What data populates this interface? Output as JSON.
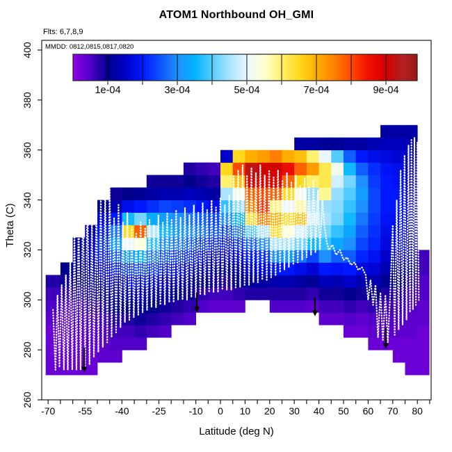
{
  "header": {
    "title": "ATOM1 Northbound OH_GMI",
    "flts": "Flts: 6,7,8,9",
    "mmdd": "MMDD: 0812,0815,0817,0820"
  },
  "axes": {
    "x": {
      "label": "Latitude (deg N)",
      "range": [
        -72.6,
        85.6
      ],
      "tick_step": 5,
      "tick_min": -70,
      "tick_max": 85,
      "labeled_ticks": [
        -70,
        -55,
        -40,
        -25,
        -10,
        0,
        10,
        20,
        30,
        40,
        50,
        60,
        70,
        80
      ]
    },
    "y": {
      "label": "Theta (C)",
      "range": [
        260,
        403
      ],
      "ticks": [
        260,
        280,
        300,
        320,
        340,
        360,
        380,
        400
      ]
    }
  },
  "colorbar": {
    "value_min": 0,
    "value_max_units": 9.9,
    "unit": "1e-04",
    "divider_units": [
      1,
      2,
      3,
      4,
      5,
      6,
      7,
      8,
      9
    ],
    "tick_units": [
      1,
      2,
      3,
      4,
      5,
      6,
      7,
      8,
      9
    ],
    "labeled_units": [
      1,
      3,
      5,
      7,
      9
    ],
    "labels": [
      "1e-04",
      "3e-04",
      "5e-04",
      "7e-04",
      "9e-04"
    ],
    "stops": [
      [
        0,
        "#9100E8"
      ],
      [
        0.5,
        "#5000C8"
      ],
      [
        1,
        "#00008B"
      ],
      [
        1.5,
        "#0000C8"
      ],
      [
        2,
        "#0018FF"
      ],
      [
        2.5,
        "#0D52FF"
      ],
      [
        3,
        "#1E90FF"
      ],
      [
        3.5,
        "#00B4FF"
      ],
      [
        4,
        "#55CCFF"
      ],
      [
        4.5,
        "#A8E4FF"
      ],
      [
        5,
        "#EAF7FF"
      ],
      [
        5.5,
        "#FFFFD0"
      ],
      [
        6,
        "#FFF06E"
      ],
      [
        6.5,
        "#FFD91E"
      ],
      [
        7,
        "#FFAE00"
      ],
      [
        7.5,
        "#FF8000"
      ],
      [
        8,
        "#FF4A00"
      ],
      [
        8.5,
        "#F01000"
      ],
      [
        9,
        "#D40000"
      ],
      [
        9.5,
        "#B22222"
      ],
      [
        9.9,
        "#9B1515"
      ]
    ]
  },
  "chart_data": {
    "type": "heatmap",
    "value_unit": "1e-04 (colorbar scale, OH mole fraction)",
    "theta_start": 270,
    "theta_step": 5,
    "lat_edges": [
      -71,
      -65,
      -60,
      -55,
      -50,
      -45,
      -40,
      -35,
      -30,
      -25,
      -20,
      -15,
      -10,
      -5,
      0,
      5,
      10,
      15,
      20,
      25,
      30,
      35,
      40,
      45,
      50,
      55,
      60,
      65,
      70,
      75,
      80,
      84.8
    ],
    "grid": [
      [
        0.3,
        0.3,
        0.3,
        0.3,
        0.4,
        0.5,
        0.6,
        0.8,
        null,
        null,
        null,
        null,
        null,
        null,
        null,
        null,
        null,
        null,
        null,
        null
      ],
      [
        0.3,
        0.3,
        0.3,
        0.4,
        0.4,
        0.5,
        0.7,
        0.9,
        1.0,
        null,
        null,
        null,
        null,
        null,
        null,
        null,
        null,
        null,
        null,
        null
      ],
      [
        0.3,
        0.3,
        0.3,
        0.4,
        0.5,
        0.6,
        0.8,
        1.0,
        1.1,
        1.2,
        1.1,
        null,
        null,
        null,
        null,
        null,
        null,
        null,
        null,
        null
      ],
      [
        0.3,
        0.3,
        0.4,
        0.4,
        0.5,
        0.7,
        0.9,
        1.1,
        1.3,
        1.5,
        1.5,
        1.3,
        null,
        null,
        null,
        null,
        null,
        null,
        null,
        null
      ],
      [
        null,
        0.4,
        0.4,
        0.5,
        0.6,
        0.8,
        1.0,
        1.3,
        1.6,
        2.0,
        2.2,
        2.0,
        1.6,
        1.0,
        null,
        null,
        null,
        null,
        null,
        null
      ],
      [
        null,
        0.4,
        0.5,
        0.6,
        0.8,
        1.0,
        1.2,
        1.5,
        2.0,
        2.6,
        3.2,
        2.8,
        2.0,
        1.3,
        0.9,
        null,
        null,
        null,
        null,
        null
      ],
      [
        null,
        null,
        0.5,
        0.6,
        0.8,
        1.0,
        1.3,
        1.7,
        2.3,
        3.2,
        5.0,
        6.5,
        3.6,
        1.8,
        1.0,
        null,
        null,
        null,
        null,
        null
      ],
      [
        null,
        null,
        0.5,
        0.7,
        0.9,
        1.1,
        1.4,
        1.8,
        2.4,
        3.4,
        5.5,
        7.8,
        4.2,
        2.0,
        1.1,
        null,
        null,
        null,
        null,
        null
      ],
      [
        null,
        null,
        null,
        0.6,
        0.8,
        1.0,
        1.3,
        1.7,
        2.2,
        2.8,
        3.8,
        4.6,
        3.4,
        2.2,
        1.2,
        0.9,
        null,
        null,
        null,
        null
      ],
      [
        null,
        null,
        null,
        0.5,
        0.7,
        0.9,
        1.2,
        1.5,
        2.0,
        2.5,
        3.0,
        3.6,
        3.2,
        2.4,
        1.3,
        0.9,
        null,
        null,
        null,
        null
      ],
      [
        null,
        null,
        null,
        null,
        0.6,
        0.8,
        1.1,
        1.4,
        1.8,
        2.3,
        2.8,
        3.2,
        3.0,
        2.3,
        1.3,
        0.9,
        null,
        null,
        null,
        null
      ],
      [
        null,
        null,
        null,
        null,
        0.5,
        0.7,
        0.9,
        1.2,
        1.6,
        2.1,
        2.6,
        3.0,
        2.8,
        2.2,
        1.4,
        1.0,
        0.8,
        null,
        null,
        null
      ],
      [
        null,
        null,
        null,
        null,
        null,
        0.5,
        0.7,
        1.0,
        1.3,
        1.8,
        2.3,
        2.8,
        2.6,
        2.0,
        1.3,
        0.9,
        0.7,
        null,
        null,
        null
      ],
      [
        null,
        null,
        null,
        null,
        null,
        0.4,
        0.6,
        0.9,
        1.2,
        1.6,
        2.1,
        2.5,
        2.4,
        1.8,
        1.2,
        0.8,
        0.6,
        null,
        null,
        null
      ],
      [
        null,
        null,
        null,
        null,
        null,
        0.4,
        0.6,
        0.8,
        1.1,
        1.5,
        1.9,
        2.4,
        3.0,
        3.8,
        4.5,
        6.0,
        6.5,
        1.5,
        null,
        null
      ],
      [
        null,
        null,
        null,
        null,
        null,
        0.4,
        0.7,
        1.0,
        1.3,
        1.7,
        2.2,
        2.8,
        3.5,
        4.3,
        5.2,
        6.8,
        8.0,
        6.5,
        null,
        null
      ],
      [
        null,
        null,
        null,
        null,
        null,
        null,
        0.8,
        1.2,
        1.6,
        2.0,
        2.6,
        4.0,
        6.5,
        7.5,
        7.8,
        8.8,
        9.3,
        7.0,
        null,
        null
      ],
      [
        null,
        null,
        null,
        null,
        null,
        null,
        0.8,
        1.2,
        1.7,
        2.2,
        3.0,
        4.5,
        7.5,
        8.2,
        8.0,
        8.8,
        9.0,
        7.2,
        null,
        null
      ],
      [
        null,
        null,
        null,
        null,
        null,
        0.5,
        0.8,
        1.3,
        2.0,
        3.0,
        4.5,
        6.5,
        7.0,
        6.0,
        7.8,
        8.8,
        9.0,
        7.5,
        null,
        null
      ],
      [
        null,
        null,
        null,
        null,
        null,
        0.5,
        0.8,
        1.3,
        2.0,
        3.2,
        4.5,
        5.5,
        6.5,
        5.0,
        6.5,
        7.8,
        8.6,
        7.0,
        null,
        null
      ],
      [
        null,
        null,
        null,
        null,
        null,
        0.5,
        0.8,
        1.2,
        1.8,
        2.8,
        4.2,
        4.8,
        6.8,
        5.8,
        5.2,
        6.5,
        7.8,
        6.8,
        1.2,
        null
      ],
      [
        null,
        null,
        null,
        null,
        null,
        0.4,
        0.7,
        1.1,
        1.6,
        2.4,
        3.6,
        4.4,
        4.8,
        4.6,
        4.4,
        6.0,
        7.2,
        6.0,
        1.2,
        null
      ],
      [
        null,
        null,
        null,
        null,
        0.4,
        0.6,
        0.9,
        1.4,
        2.0,
        3.0,
        3.8,
        4.2,
        4.5,
        4.4,
        5.8,
        6.2,
        6.2,
        5.0,
        1.1,
        null
      ],
      [
        null,
        null,
        null,
        null,
        0.4,
        0.6,
        0.9,
        1.3,
        1.9,
        2.6,
        3.3,
        3.8,
        4.2,
        4.3,
        4.4,
        4.8,
        5.2,
        4.0,
        1.1,
        null
      ],
      [
        null,
        null,
        null,
        0.3,
        0.5,
        0.7,
        1.0,
        1.5,
        2.0,
        2.6,
        3.0,
        3.3,
        3.6,
        3.8,
        4.0,
        4.2,
        3.6,
        2.6,
        1.2,
        null
      ],
      [
        null,
        null,
        null,
        0.3,
        0.4,
        0.6,
        0.9,
        1.3,
        1.7,
        2.1,
        2.4,
        2.6,
        2.8,
        3.0,
        3.2,
        3.0,
        2.6,
        2.0,
        1.2,
        null
      ],
      [
        null,
        null,
        0.3,
        0.4,
        0.5,
        0.7,
        1.0,
        1.3,
        1.6,
        1.9,
        2.1,
        2.2,
        2.3,
        2.4,
        2.4,
        2.3,
        2.2,
        1.8,
        1.3,
        null
      ],
      [
        null,
        null,
        0.3,
        0.4,
        0.5,
        0.6,
        0.8,
        1.1,
        1.3,
        1.5,
        1.7,
        1.8,
        1.9,
        2.0,
        2.0,
        2.0,
        1.9,
        1.7,
        1.4,
        1.2
      ],
      [
        null,
        0.3,
        0.3,
        0.4,
        0.5,
        0.6,
        0.8,
        1.0,
        1.3,
        1.5,
        1.7,
        1.8,
        1.9,
        2.0,
        2.0,
        1.9,
        1.8,
        1.6,
        1.4,
        1.2
      ],
      [
        0.3,
        0.3,
        0.3,
        0.4,
        0.4,
        0.5,
        0.6,
        0.8,
        1.0,
        1.2,
        1.4,
        1.5,
        1.6,
        1.6,
        1.6,
        1.5,
        1.5,
        1.4,
        1.3,
        1.2
      ],
      [
        0.3,
        0.3,
        0.3,
        0.3,
        0.4,
        0.4,
        0.5,
        0.5,
        0.6,
        0.6,
        null,
        null,
        null,
        null,
        null,
        null,
        null,
        null,
        null,
        null
      ]
    ],
    "flight_track": [
      [
        -68,
        296
      ],
      [
        -67,
        272
      ],
      [
        -66.2,
        302
      ],
      [
        -65.4,
        273
      ],
      [
        -64.5,
        306
      ],
      [
        -63.6,
        272
      ],
      [
        -62.8,
        310
      ],
      [
        -62,
        272
      ],
      [
        -61,
        316
      ],
      [
        -60.2,
        272
      ],
      [
        -59.3,
        326
      ],
      [
        -58.5,
        272
      ],
      [
        -57.6,
        333
      ],
      [
        -56.8,
        272
      ],
      [
        -55.8,
        341
      ],
      [
        -55,
        272
      ],
      [
        -54,
        343
      ],
      [
        -53.2,
        274
      ],
      [
        -52.2,
        331
      ],
      [
        -51.4,
        277
      ],
      [
        -50.4,
        337
      ],
      [
        -49.6,
        279
      ],
      [
        -48.6,
        341
      ],
      [
        -47.8,
        281
      ],
      [
        -46.8,
        344
      ],
      [
        -46,
        283
      ],
      [
        -45,
        345
      ],
      [
        -44.2,
        285
      ],
      [
        -43.2,
        333
      ],
      [
        -42.4,
        287
      ],
      [
        -41.4,
        338
      ],
      [
        -40.6,
        289
      ],
      [
        -39.6,
        331
      ],
      [
        -38.8,
        291
      ],
      [
        -37.8,
        335
      ],
      [
        -37,
        292
      ],
      [
        -36,
        329
      ],
      [
        -35.2,
        293
      ],
      [
        -34.2,
        327
      ],
      [
        -33.4,
        294
      ],
      [
        -32.4,
        331
      ],
      [
        -31.6,
        295
      ],
      [
        -30.6,
        329
      ],
      [
        -29.8,
        296
      ],
      [
        -28.8,
        332
      ],
      [
        -28,
        297
      ],
      [
        -27,
        330
      ],
      [
        -26.2,
        297
      ],
      [
        -25.2,
        334
      ],
      [
        -24.4,
        298
      ],
      [
        -23.4,
        331
      ],
      [
        -22.6,
        298
      ],
      [
        -21.6,
        335
      ],
      [
        -20.8,
        299
      ],
      [
        -19.8,
        332
      ],
      [
        -19,
        299
      ],
      [
        -18,
        336
      ],
      [
        -17.2,
        300
      ],
      [
        -16.2,
        333
      ],
      [
        -15.4,
        300
      ],
      [
        -14.4,
        337
      ],
      [
        -13.6,
        300
      ],
      [
        -12.6,
        334
      ],
      [
        -11.8,
        301
      ],
      [
        -10.8,
        338
      ],
      [
        -10,
        301
      ],
      [
        -9,
        335
      ],
      [
        -8.2,
        302
      ],
      [
        -7.2,
        339
      ],
      [
        -6.4,
        302
      ],
      [
        -5.4,
        336
      ],
      [
        -4.6,
        303
      ],
      [
        -3.6,
        340
      ],
      [
        -2.8,
        303
      ],
      [
        -1.8,
        337
      ],
      [
        -1,
        303
      ],
      [
        0,
        341
      ],
      [
        0.8,
        304
      ],
      [
        1.8,
        338
      ],
      [
        2.6,
        304
      ],
      [
        3.6,
        342
      ],
      [
        4.4,
        304
      ],
      [
        5.4,
        350
      ],
      [
        6.2,
        305
      ],
      [
        7.2,
        352
      ],
      [
        8,
        305
      ],
      [
        9,
        354
      ],
      [
        9.8,
        306
      ],
      [
        10.8,
        350
      ],
      [
        11.6,
        306
      ],
      [
        12.6,
        353
      ],
      [
        13.4,
        307
      ],
      [
        14.4,
        351
      ],
      [
        15.2,
        307
      ],
      [
        16.2,
        354
      ],
      [
        17,
        308
      ],
      [
        18,
        350
      ],
      [
        18.8,
        308
      ],
      [
        19.8,
        352
      ],
      [
        20.6,
        309
      ],
      [
        21.6,
        349
      ],
      [
        22.4,
        310
      ],
      [
        23.4,
        352
      ],
      [
        24.2,
        311
      ],
      [
        25.2,
        348
      ],
      [
        26,
        312
      ],
      [
        27,
        351
      ],
      [
        27.8,
        313
      ],
      [
        28.8,
        347
      ],
      [
        29.6,
        314
      ],
      [
        30.6,
        350
      ],
      [
        31.4,
        315
      ],
      [
        32.4,
        346
      ],
      [
        33.2,
        316
      ],
      [
        34.2,
        349
      ],
      [
        35,
        317
      ],
      [
        36,
        345
      ],
      [
        36.8,
        318
      ],
      [
        37.8,
        348
      ],
      [
        38.6,
        319
      ],
      [
        39.6,
        344
      ],
      [
        40.4,
        320
      ],
      [
        41.4,
        340
      ],
      [
        42.2,
        330
      ],
      [
        43,
        324
      ],
      [
        44,
        320
      ],
      [
        45.5,
        322
      ],
      [
        47,
        318
      ],
      [
        48.5,
        320
      ],
      [
        50,
        316
      ],
      [
        51.5,
        317
      ],
      [
        53,
        314
      ],
      [
        54.5,
        315
      ],
      [
        56,
        312
      ],
      [
        57.5,
        313
      ],
      [
        59,
        310
      ],
      [
        60,
        300
      ],
      [
        61,
        308
      ],
      [
        62,
        298
      ],
      [
        63,
        306
      ],
      [
        64,
        285
      ],
      [
        65,
        303
      ],
      [
        66,
        284
      ],
      [
        67,
        302
      ],
      [
        68,
        283
      ],
      [
        69,
        303
      ],
      [
        70,
        330
      ],
      [
        70.8,
        286
      ],
      [
        71.6,
        340
      ],
      [
        72.4,
        288
      ],
      [
        73.2,
        352
      ],
      [
        74,
        290
      ],
      [
        74.8,
        358
      ],
      [
        75.6,
        292
      ],
      [
        76.4,
        362
      ],
      [
        77,
        295
      ],
      [
        77.6,
        364
      ],
      [
        78.2,
        296
      ],
      [
        78.8,
        365
      ],
      [
        79.4,
        298
      ],
      [
        80,
        363
      ],
      [
        80.6,
        300
      ]
    ],
    "arrows": [
      {
        "lat": -55.3,
        "theta_from": 281.0,
        "theta_to": 271.0
      },
      {
        "lat": -9.6,
        "theta_from": 303.0,
        "theta_to": 295.0
      },
      {
        "lat": 38.4,
        "theta_from": 301.0,
        "theta_to": 293.5
      },
      {
        "lat": 67.2,
        "theta_from": 289.0,
        "theta_to": 280.5
      }
    ]
  },
  "layout_colors": {
    "frame": "#1a1a1a",
    "tick": "#1a1a1a",
    "colorbar_tick": "#666666",
    "track": "#ffffff",
    "arrow": "#000000"
  }
}
